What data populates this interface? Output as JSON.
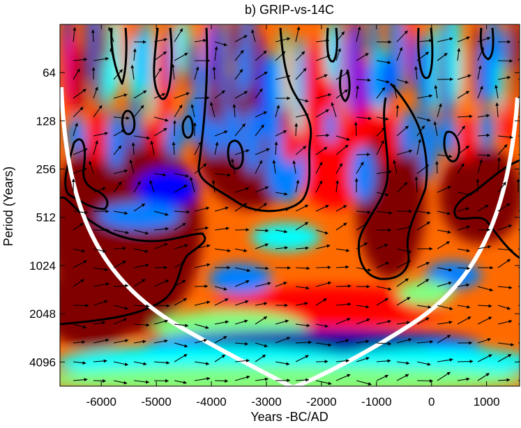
{
  "chart_data": {
    "type": "heatmap",
    "title": "b) GRIP-vs-14C",
    "xlabel": "Years -BC/AD",
    "ylabel": "Period (Years)",
    "xlim": [
      -6750,
      1600
    ],
    "ylim_period": [
      32,
      5800
    ],
    "y_scale": "log2",
    "x_ticks": [
      -6000,
      -5000,
      -4000,
      -3000,
      -2000,
      -1000,
      0,
      1000
    ],
    "x_tick_labels": [
      "-6000",
      "-5000",
      "-4000",
      "-3000",
      "-2000",
      "-1000",
      "0",
      "1000"
    ],
    "y_ticks": [
      64,
      128,
      256,
      512,
      1024,
      2048,
      4096
    ],
    "y_tick_labels": [
      "64",
      "128",
      "256",
      "512",
      "1024",
      "2048",
      "4096"
    ],
    "colormap": [
      "#00008f",
      "#0000ff",
      "#0080ff",
      "#00ffff",
      "#80ff80",
      "#ffff00",
      "#ff8000",
      "#ff0000",
      "#800000"
    ],
    "cone_of_influence_color": "#ffffff",
    "contour_color": "#000000",
    "arrow_color": "#000000",
    "grid": false,
    "legend": "none"
  }
}
